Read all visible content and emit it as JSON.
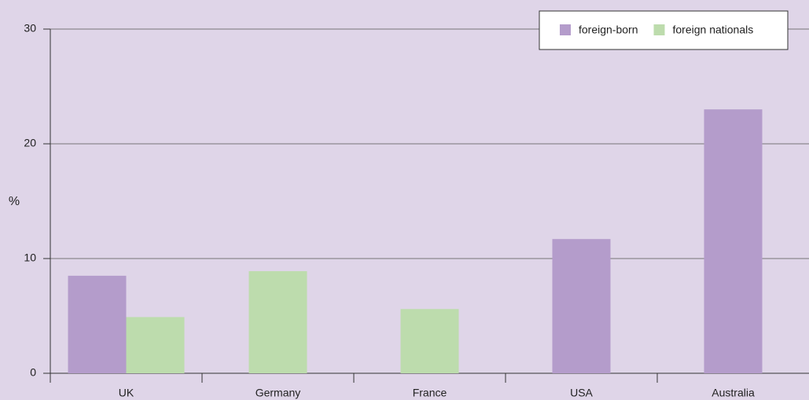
{
  "chart_data": {
    "type": "bar",
    "y_label": "%",
    "categories": [
      "UK",
      "Germany",
      "France",
      "USA",
      "Australia"
    ],
    "series": [
      {
        "name": "foreign-born",
        "color": "#b49ccb",
        "values": [
          8.5,
          null,
          null,
          11.7,
          23.0
        ]
      },
      {
        "name": "foreign nationals",
        "color": "#bddcad",
        "values": [
          4.9,
          8.9,
          5.6,
          null,
          null
        ]
      }
    ],
    "ylim": [
      0,
      30
    ],
    "yticks": [
      0,
      10,
      20,
      30
    ],
    "grid": true,
    "legend": "top-right"
  }
}
